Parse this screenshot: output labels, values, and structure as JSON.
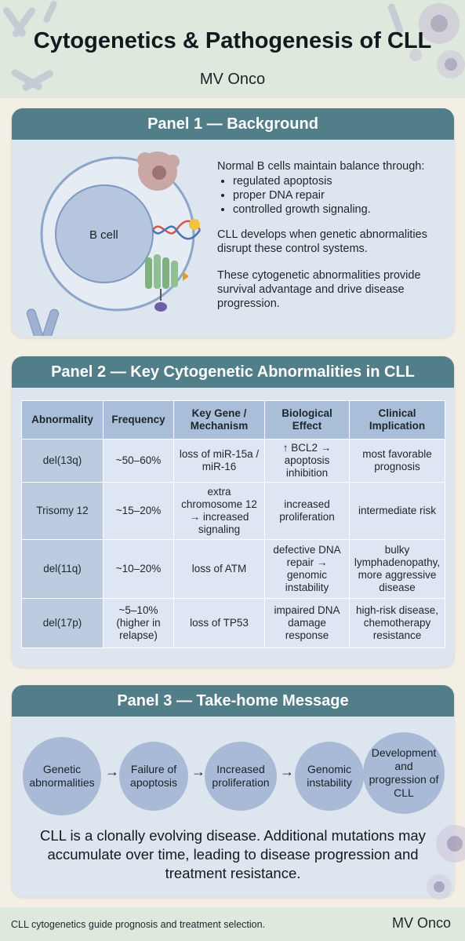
{
  "header": {
    "title": "Cytogenetics & Pathogenesis of CLL",
    "subtitle": "MV Onco"
  },
  "panel1": {
    "heading": "Panel 1 — Background",
    "cell_label": "B cell",
    "intro": "Normal B cells maintain balance through:",
    "bullets": [
      "regulated apoptosis",
      "proper DNA repair",
      "controlled growth signaling."
    ],
    "para1": "CLL develops when genetic abnormalities disrupt these control systems.",
    "para2": "These cytogenetic abnormalities provide survival advantage and drive disease progression."
  },
  "panel2": {
    "heading": "Panel 2 — Key Cytogenetic Abnormalities in CLL",
    "columns": [
      "Abnormality",
      "Frequency",
      "Key Gene / Mechanism",
      "Biological Effect",
      "Clinical Implication"
    ],
    "rows": [
      {
        "abnormality": "del(13q)",
        "frequency": "~50–60%",
        "mechanism": "loss of miR-15a / miR-16",
        "effect": "↑ BCL2 → apoptosis inhibition",
        "implication": "most favorable prognosis"
      },
      {
        "abnormality": "Trisomy 12",
        "frequency": "~15–20%",
        "mechanism": "extra chromosome 12 → increased signaling",
        "effect": "increased proliferation",
        "implication": "intermediate risk"
      },
      {
        "abnormality": "del(11q)",
        "frequency": "~10–20%",
        "mechanism": "loss of ATM",
        "effect": "defective DNA repair → genomic instability",
        "implication": "bulky lymphadenopathy, more aggressive disease"
      },
      {
        "abnormality": "del(17p)",
        "frequency": "~5–10% (higher in relapse)",
        "mechanism": "loss of TP53",
        "effect": "impaired DNA damage response",
        "implication": "high-risk disease, chemotherapy resistance"
      }
    ]
  },
  "panel3": {
    "heading": "Panel 3 — Take-home Message",
    "steps": [
      "Genetic abnormalities",
      "Failure of apoptosis",
      "Increased proliferation",
      "Genomic instability",
      "Development and progression of CLL"
    ],
    "arrow": "→",
    "message": "CLL is a clonally evolving disease. Additional mutations may accumulate over time, leading to disease progression and treatment resistance."
  },
  "footer": {
    "note": "CLL cytogenetics guide prognosis and treatment selection.",
    "brand": "MV Onco"
  },
  "icons": [
    "chromosome-icon",
    "cell-icon",
    "dna-helix-icon",
    "receptor-icon",
    "arrow-right-icon"
  ]
}
